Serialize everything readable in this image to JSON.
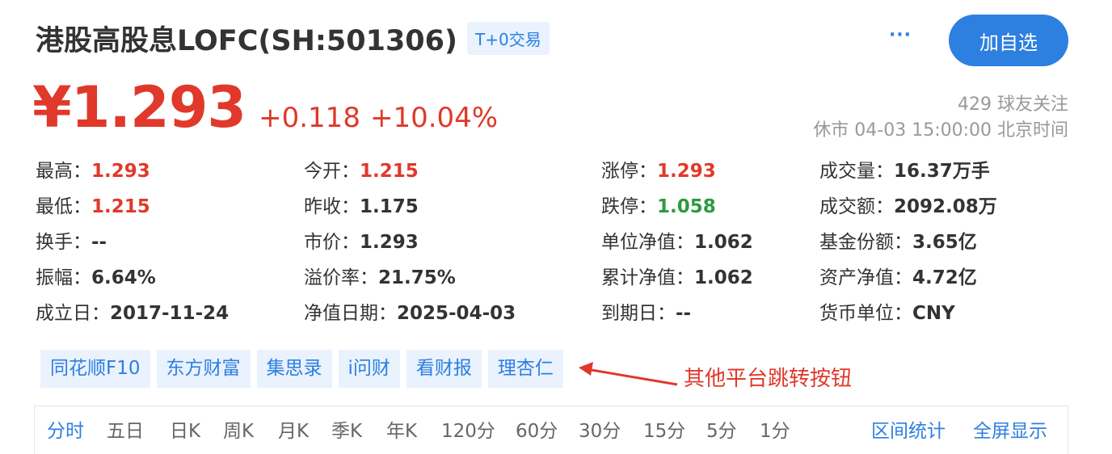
{
  "header": {
    "stock_name": "港股高股息LOFC(SH:501306)",
    "badge": "T+0交易",
    "more_label": "···",
    "follow_label": "加自选"
  },
  "quote": {
    "price": "¥1.293",
    "change": "+0.118",
    "change_pct": "+10.04%",
    "followers": "429 球友关注",
    "status_time": "休市 04-03 15:00:00 北京时间"
  },
  "stats": {
    "high": {
      "label": "最高：",
      "value": "1.293"
    },
    "open": {
      "label": "今开：",
      "value": "1.215"
    },
    "limit_up": {
      "label": "涨停：",
      "value": "1.293"
    },
    "volume": {
      "label": "成交量：",
      "value": "16.37万手"
    },
    "low": {
      "label": "最低：",
      "value": "1.215"
    },
    "prev_close": {
      "label": "昨收：",
      "value": "1.175"
    },
    "limit_down": {
      "label": "跌停：",
      "value": "1.058"
    },
    "turnover": {
      "label": "成交额：",
      "value": "2092.08万"
    },
    "turnover_rate": {
      "label": "换手：",
      "value": "--"
    },
    "market_price": {
      "label": "市价：",
      "value": "1.293"
    },
    "unit_nav": {
      "label": "单位净值：",
      "value": "1.062"
    },
    "fund_shares": {
      "label": "基金份额：",
      "value": "3.65亿"
    },
    "amplitude": {
      "label": "振幅：",
      "value": "6.64%"
    },
    "premium": {
      "label": "溢价率：",
      "value": "21.75%"
    },
    "acc_nav": {
      "label": "累计净值：",
      "value": "1.062"
    },
    "net_assets": {
      "label": "资产净值：",
      "value": "4.72亿"
    },
    "inception": {
      "label": "成立日：",
      "value": "2017-11-24"
    },
    "nav_date": {
      "label": "净值日期：",
      "value": "2025-04-03"
    },
    "maturity": {
      "label": "到期日：",
      "value": "--"
    },
    "currency": {
      "label": "货币单位：",
      "value": "CNY"
    }
  },
  "platforms": [
    "同花顺F10",
    "东方财富",
    "集思录",
    "i问财",
    "看财报",
    "理杏仁"
  ],
  "annotation": "其他平台跳转按钮",
  "tabs": [
    "分时",
    "五日",
    "日K",
    "周K",
    "月K",
    "季K",
    "年K",
    "120分",
    "60分",
    "30分",
    "15分",
    "5分",
    "1分"
  ],
  "tab_links": [
    "区间统计",
    "全屏显示"
  ],
  "colors": {
    "up": "#e0392b",
    "down": "#2e9a40",
    "accent": "#2d7fe0"
  }
}
